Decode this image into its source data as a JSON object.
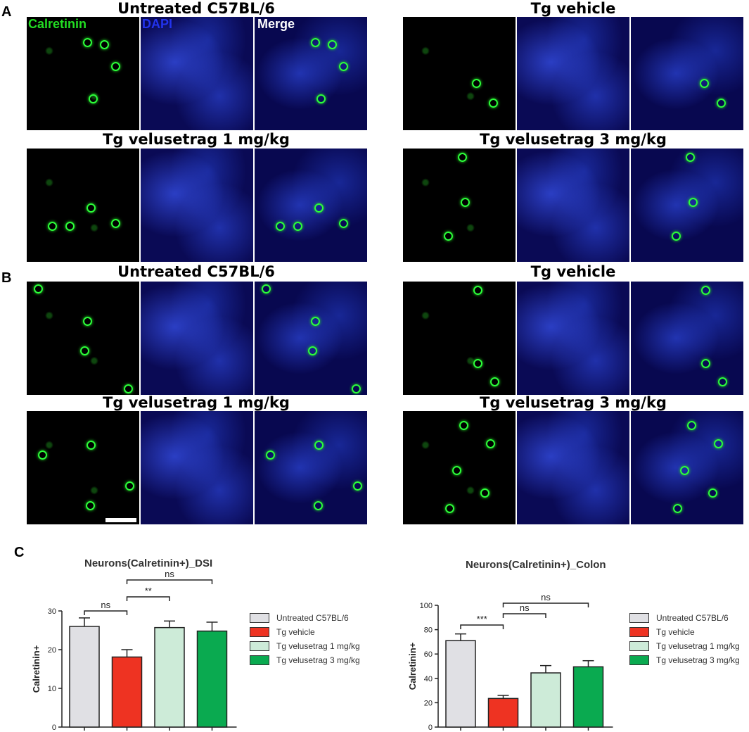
{
  "panels": {
    "a": "A",
    "b": "B",
    "c": "C"
  },
  "channels": {
    "calretinin": "Calretinin",
    "dapi": "DAPI",
    "merge": "Merge"
  },
  "groups": {
    "untreated": "Untreated C57BL/6",
    "vehicle": "Tg vehicle",
    "vel1": "Tg velusetrag 1 mg/kg",
    "vel3": "Tg velusetrag 3 mg/kg"
  },
  "colors": {
    "untreated": "#e0e0e4",
    "vehicle": "#ee3322",
    "vel1": "#cdebd8",
    "vel3": "#0aaa50",
    "calretinin_label": "#22dd22",
    "dapi_label": "#2233ee"
  },
  "chart_data": [
    {
      "type": "bar",
      "title": "Neurons(Calretinin+)_DSI",
      "ylabel": "Calretinin+",
      "xlabel": "",
      "ylim": [
        0,
        30
      ],
      "yticks": [
        0,
        10,
        20,
        30
      ],
      "categories": [
        "Untreated C57BL/6",
        "Tg vehicle",
        "Tg velusetrag 1 mg/kg",
        "Tg velusetrag 3 mg/kg"
      ],
      "values": [
        26,
        18.1,
        25.7,
        24.8
      ],
      "errors": [
        2.2,
        1.9,
        1.7,
        2.3
      ],
      "significance": [
        {
          "from": 0,
          "to": 1,
          "label": "ns"
        },
        {
          "from": 1,
          "to": 2,
          "label": "**"
        },
        {
          "from": 1,
          "to": 3,
          "label": "ns"
        }
      ],
      "legend": [
        "Untreated C57BL/6",
        "Tg vehicle",
        "Tg velusetrag 1 mg/kg",
        "Tg velusetrag 3 mg/kg"
      ],
      "grid": false
    },
    {
      "type": "bar",
      "title": "Neurons(Calretinin+)_Colon",
      "ylabel": "Calretinin+",
      "xlabel": "",
      "ylim": [
        0,
        100
      ],
      "yticks": [
        0,
        20,
        40,
        60,
        80,
        100
      ],
      "categories": [
        "Untreated C57BL/6",
        "Tg vehicle",
        "Tg velusetrag 1 mg/kg",
        "Tg velusetrag 3 mg/kg"
      ],
      "values": [
        71,
        23.5,
        44.5,
        49.5
      ],
      "errors": [
        5.5,
        2.5,
        6,
        5
      ],
      "significance": [
        {
          "from": 0,
          "to": 1,
          "label": "***"
        },
        {
          "from": 1,
          "to": 2,
          "label": "ns"
        },
        {
          "from": 1,
          "to": 3,
          "label": "ns"
        }
      ],
      "legend": [
        "Untreated C57BL/6",
        "Tg vehicle",
        "Tg velusetrag 1 mg/kg",
        "Tg velusetrag 3 mg/kg"
      ],
      "grid": false
    }
  ]
}
